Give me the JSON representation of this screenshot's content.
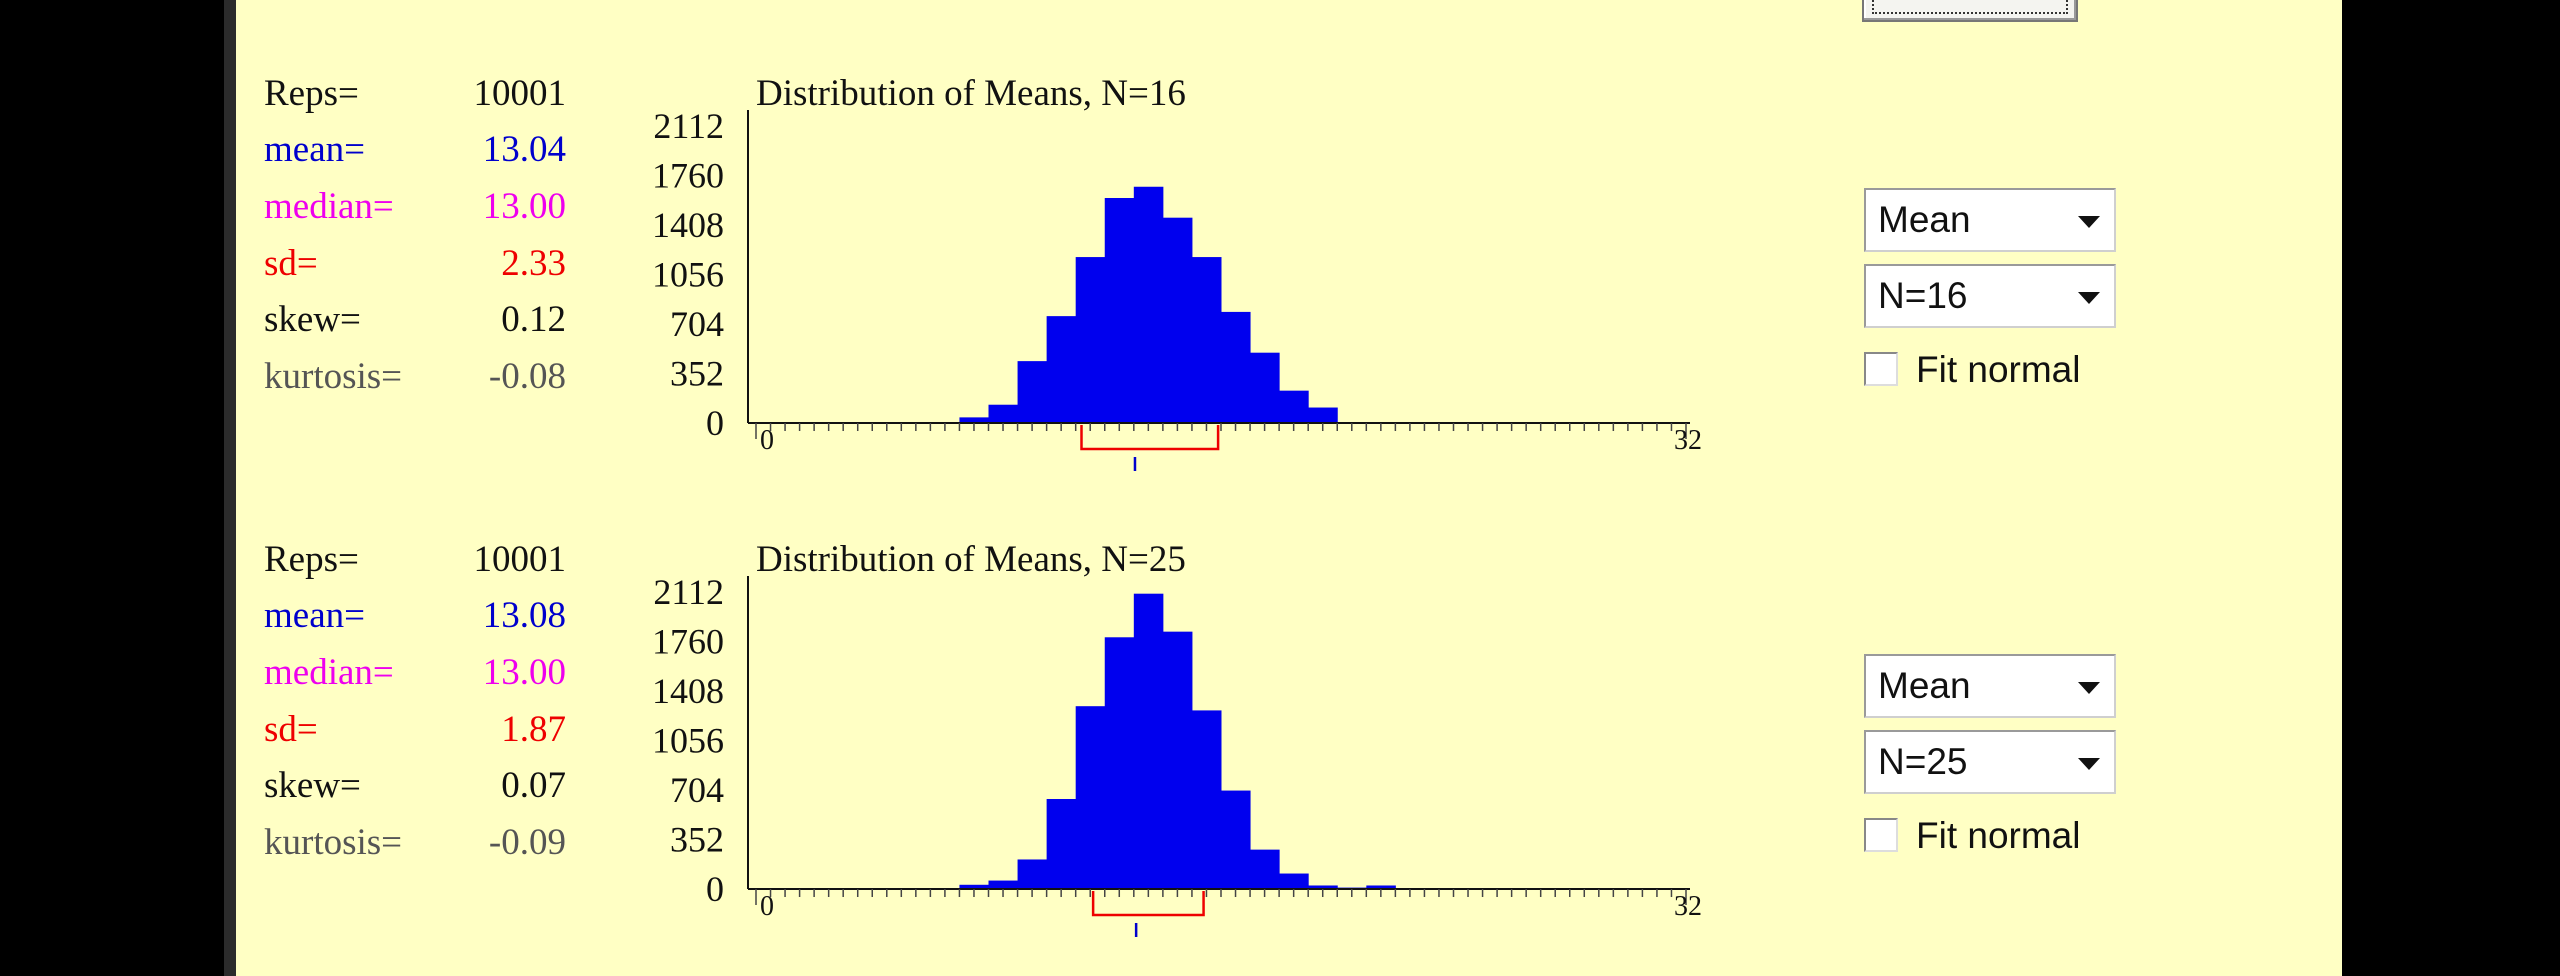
{
  "panels": [
    {
      "stats": {
        "reps_label": "Reps=",
        "reps_value": "10001",
        "mean_label": "mean=",
        "mean_value": "13.04",
        "median_label": "median=",
        "median_value": "13.00",
        "sd_label": "sd=",
        "sd_value": "2.33",
        "skew_label": "skew=",
        "skew_value": "0.12",
        "kurtosis_label": "kurtosis=",
        "kurtosis_value": "-0.08"
      },
      "statistic_select": "Mean",
      "n_select": "N=16",
      "fit_normal_label": "Fit normal",
      "fit_normal_checked": false,
      "chart_data": {
        "type": "bar",
        "title": "Distribution of Means, N=16",
        "y_ticks": [
          "2112",
          "1760",
          "1408",
          "1056",
          "704",
          "352",
          "0"
        ],
        "ylim": [
          0,
          2112
        ],
        "x_tick_labels": [
          "0",
          "32"
        ],
        "xlim": [
          0,
          32
        ],
        "bin_width": 1,
        "bins_x": [
          7,
          8,
          9,
          10,
          11,
          12,
          13,
          14,
          15,
          16,
          17,
          18,
          19
        ],
        "values": [
          40,
          130,
          440,
          760,
          1180,
          1600,
          1680,
          1460,
          1180,
          790,
          500,
          230,
          110
        ],
        "bar_color": "#0000ee",
        "interval_low": 11.2,
        "interval_high": 15.9,
        "mean_marker": 13.04
      }
    },
    {
      "stats": {
        "reps_label": "Reps=",
        "reps_value": "10001",
        "mean_label": "mean=",
        "mean_value": "13.08",
        "median_label": "median=",
        "median_value": "13.00",
        "sd_label": "sd=",
        "sd_value": "1.87",
        "skew_label": "skew=",
        "skew_value": "0.07",
        "kurtosis_label": "kurtosis=",
        "kurtosis_value": "-0.09"
      },
      "statistic_select": "Mean",
      "n_select": "N=25",
      "fit_normal_label": "Fit normal",
      "fit_normal_checked": false,
      "chart_data": {
        "type": "bar",
        "title": "Distribution of Means, N=25",
        "y_ticks": [
          "2112",
          "1760",
          "1408",
          "1056",
          "704",
          "352",
          "0"
        ],
        "ylim": [
          0,
          2112
        ],
        "x_tick_labels": [
          "0",
          "32"
        ],
        "xlim": [
          0,
          32
        ],
        "bin_width": 1,
        "bins_x": [
          7,
          8,
          9,
          10,
          11,
          12,
          13,
          14,
          15,
          16,
          17,
          18,
          19,
          20,
          21
        ],
        "values": [
          30,
          60,
          210,
          640,
          1300,
          1790,
          2100,
          1830,
          1270,
          700,
          280,
          110,
          25,
          10,
          25
        ],
        "bar_color": "#0000ee",
        "interval_low": 11.6,
        "interval_high": 15.4,
        "mean_marker": 13.08
      }
    }
  ]
}
